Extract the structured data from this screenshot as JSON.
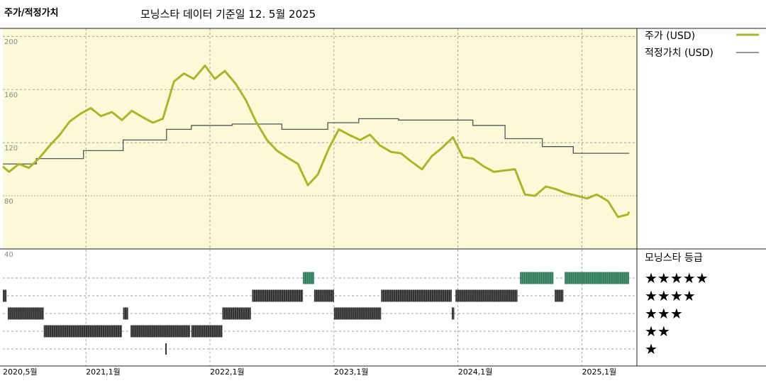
{
  "header": {
    "title": "주가/적정가치",
    "subtitle": "모닝스타 데이터 기준일 12. 5월 2025"
  },
  "legend": {
    "price_label": "주가 (USD)",
    "fair_label": "적정가치 (USD)",
    "rating_title": "모닝스타 등급"
  },
  "colors": {
    "plot_bg": "#fcf9d8",
    "price_line": "#a8b728",
    "fair_line": "#555555",
    "five_star_bar": "#2e7d5b",
    "rating_bar": "#333333",
    "grid": "#7f7f7f"
  },
  "chart_data": {
    "type": "line",
    "title": "주가/적정가치",
    "subtitle": "모닝스타 데이터 기준일 12. 5월 2025",
    "x_range": [
      "2020-05",
      "2025-05"
    ],
    "y_range": [
      40,
      206
    ],
    "y_ticks": [
      40,
      80,
      120,
      160,
      200
    ],
    "x_tick_labels": [
      "2020,5월",
      "2021,1월",
      "2022,1월",
      "2023,1월",
      "2024,1월",
      "2025,1월"
    ],
    "x_tick_dates": [
      2020.33,
      2021.0,
      2022.0,
      2023.0,
      2024.0,
      2025.0
    ],
    "series": [
      {
        "name": "주가 (USD)",
        "points": [
          [
            2020.33,
            102
          ],
          [
            2020.38,
            98
          ],
          [
            2020.46,
            104
          ],
          [
            2020.54,
            101
          ],
          [
            2020.62,
            108
          ],
          [
            2020.71,
            118
          ],
          [
            2020.79,
            126
          ],
          [
            2020.87,
            136
          ],
          [
            2020.96,
            142
          ],
          [
            2021.04,
            146
          ],
          [
            2021.12,
            140
          ],
          [
            2021.21,
            143
          ],
          [
            2021.29,
            137
          ],
          [
            2021.37,
            144
          ],
          [
            2021.46,
            139
          ],
          [
            2021.54,
            135
          ],
          [
            2021.62,
            138
          ],
          [
            2021.71,
            166
          ],
          [
            2021.79,
            172
          ],
          [
            2021.87,
            168
          ],
          [
            2021.96,
            178
          ],
          [
            2022.04,
            168
          ],
          [
            2022.12,
            174
          ],
          [
            2022.21,
            164
          ],
          [
            2022.29,
            152
          ],
          [
            2022.37,
            136
          ],
          [
            2022.46,
            122
          ],
          [
            2022.54,
            114
          ],
          [
            2022.62,
            109
          ],
          [
            2022.71,
            104
          ],
          [
            2022.79,
            88
          ],
          [
            2022.87,
            96
          ],
          [
            2022.96,
            116
          ],
          [
            2023.04,
            130
          ],
          [
            2023.12,
            126
          ],
          [
            2023.21,
            122
          ],
          [
            2023.29,
            126
          ],
          [
            2023.37,
            118
          ],
          [
            2023.46,
            113
          ],
          [
            2023.54,
            112
          ],
          [
            2023.62,
            106
          ],
          [
            2023.71,
            100
          ],
          [
            2023.79,
            110
          ],
          [
            2023.87,
            116
          ],
          [
            2023.96,
            124
          ],
          [
            2024.04,
            109
          ],
          [
            2024.12,
            108
          ],
          [
            2024.21,
            102
          ],
          [
            2024.29,
            98
          ],
          [
            2024.37,
            99
          ],
          [
            2024.46,
            100
          ],
          [
            2024.54,
            81
          ],
          [
            2024.62,
            80
          ],
          [
            2024.71,
            87
          ],
          [
            2024.79,
            85
          ],
          [
            2024.87,
            82
          ],
          [
            2024.96,
            80
          ],
          [
            2025.04,
            78
          ],
          [
            2025.12,
            81
          ],
          [
            2025.21,
            76
          ],
          [
            2025.29,
            64
          ],
          [
            2025.37,
            66
          ],
          [
            2025.38,
            68
          ]
        ]
      },
      {
        "name": "적정가치 (USD)",
        "points": [
          [
            2020.33,
            104
          ],
          [
            2020.6,
            104
          ],
          [
            2020.6,
            108
          ],
          [
            2020.98,
            108
          ],
          [
            2020.98,
            114
          ],
          [
            2021.3,
            114
          ],
          [
            2021.3,
            122
          ],
          [
            2021.65,
            122
          ],
          [
            2021.65,
            130
          ],
          [
            2021.85,
            130
          ],
          [
            2021.85,
            133
          ],
          [
            2022.18,
            133
          ],
          [
            2022.18,
            134
          ],
          [
            2022.58,
            134
          ],
          [
            2022.58,
            130
          ],
          [
            2022.95,
            130
          ],
          [
            2022.95,
            135
          ],
          [
            2023.2,
            135
          ],
          [
            2023.2,
            138
          ],
          [
            2023.52,
            138
          ],
          [
            2023.52,
            137
          ],
          [
            2024.12,
            137
          ],
          [
            2024.12,
            133
          ],
          [
            2024.38,
            133
          ],
          [
            2024.38,
            123
          ],
          [
            2024.68,
            123
          ],
          [
            2024.68,
            117
          ],
          [
            2024.93,
            117
          ],
          [
            2024.93,
            112
          ],
          [
            2025.38,
            112
          ]
        ]
      }
    ]
  },
  "ratings": {
    "labels": [
      "★★★★★",
      "★★★★",
      "★★★",
      "★★",
      "★"
    ],
    "segments": [
      {
        "stars": 4,
        "from": 2020.33,
        "to": 2020.36
      },
      {
        "stars": 3,
        "from": 2020.37,
        "to": 2020.66
      },
      {
        "stars": 2,
        "from": 2020.66,
        "to": 2021.29
      },
      {
        "stars": 3,
        "from": 2021.3,
        "to": 2021.34
      },
      {
        "stars": 2,
        "from": 2021.36,
        "to": 2021.84
      },
      {
        "stars": 1,
        "from": 2021.64,
        "to": 2021.65
      },
      {
        "stars": 2,
        "from": 2021.85,
        "to": 2022.1
      },
      {
        "stars": 3,
        "from": 2022.1,
        "to": 2022.33
      },
      {
        "stars": 4,
        "from": 2022.34,
        "to": 2022.75
      },
      {
        "stars": 5,
        "from": 2022.75,
        "to": 2022.84
      },
      {
        "stars": 4,
        "from": 2022.84,
        "to": 2023.0
      },
      {
        "stars": 3,
        "from": 2023.0,
        "to": 2023.38
      },
      {
        "stars": 4,
        "from": 2023.38,
        "to": 2023.95
      },
      {
        "stars": 3,
        "from": 2023.95,
        "to": 2023.97
      },
      {
        "stars": 4,
        "from": 2023.98,
        "to": 2024.48
      },
      {
        "stars": 5,
        "from": 2024.5,
        "to": 2024.77
      },
      {
        "stars": 4,
        "from": 2024.78,
        "to": 2024.85
      },
      {
        "stars": 5,
        "from": 2024.86,
        "to": 2025.38
      }
    ]
  }
}
